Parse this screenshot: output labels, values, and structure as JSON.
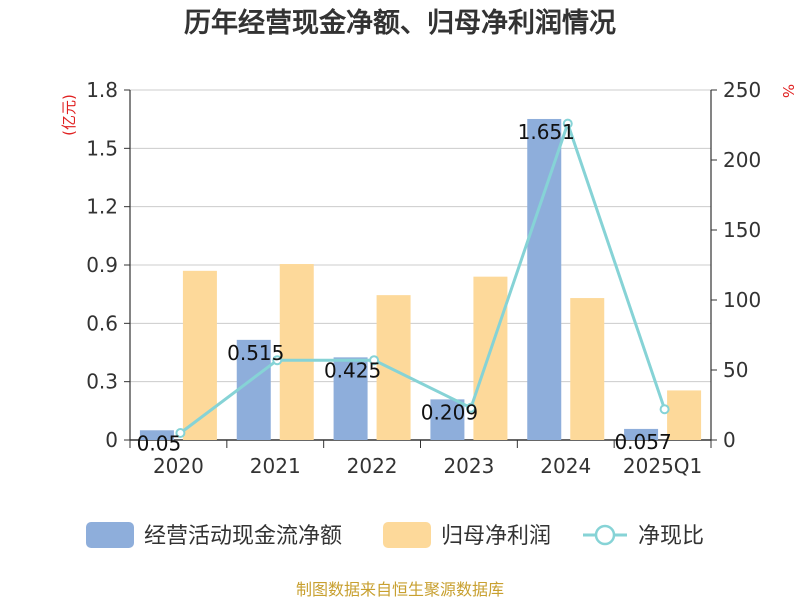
{
  "chart_data": {
    "type": "bar",
    "title": "历年经营现金净额、归母净利润情况",
    "categories": [
      "2020",
      "2021",
      "2022",
      "2023",
      "2024",
      "2025Q1"
    ],
    "y_left": {
      "unit": "(亿元)",
      "ylim": [
        0,
        1.8
      ],
      "ticks": [
        "0",
        "0.3",
        "0.6",
        "0.9",
        "1.2",
        "1.5",
        "1.8"
      ]
    },
    "y_right": {
      "unit": "%",
      "ylim": [
        0,
        250
      ],
      "ticks": [
        "0",
        "50",
        "100",
        "150",
        "200",
        "250"
      ]
    },
    "series": [
      {
        "name": "经营活动现金流净额",
        "type": "bar",
        "axis": "left",
        "color": "#8eaedb",
        "values": [
          0.05,
          0.515,
          0.425,
          0.209,
          1.651,
          0.057
        ],
        "labels": [
          "0.05",
          "0.515",
          "0.425",
          "0.209",
          "1.651",
          "0.057"
        ]
      },
      {
        "name": "归母净利润",
        "type": "bar",
        "axis": "left",
        "color": "#fdd99a",
        "values": [
          0.87,
          0.905,
          0.745,
          0.84,
          0.73,
          0.255
        ]
      },
      {
        "name": "净现比",
        "type": "line",
        "axis": "right",
        "color": "#86d3d6",
        "values": [
          5,
          57,
          57,
          23,
          226,
          22
        ]
      }
    ],
    "grid": true,
    "legend_position": "bottom"
  },
  "footer": {
    "source": "制图数据来自恒生聚源数据库"
  }
}
